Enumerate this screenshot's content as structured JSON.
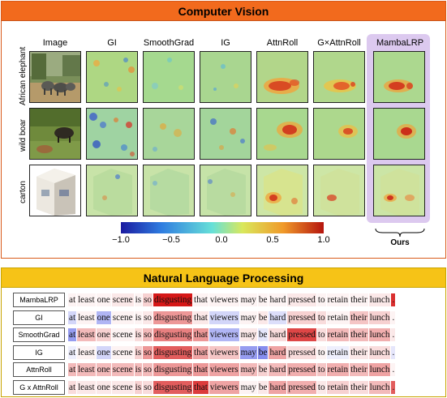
{
  "cv": {
    "title": "Computer Vision",
    "columns": [
      "Image",
      "GI",
      "SmoothGrad",
      "IG",
      "AttnRoll",
      "G×AttnRoll",
      "MambaLRP"
    ],
    "rows": [
      "African elephant",
      "wild boar",
      "carton"
    ],
    "colorbar": {
      "ticks": [
        "−1.0",
        "−0.5",
        "0.0",
        "0.5",
        "1.0"
      ],
      "colors": [
        "#1a1aa0",
        "#2f7de0",
        "#66e0d8",
        "#d9e85c",
        "#f09a2a",
        "#b5140e"
      ]
    },
    "ours_label": "Ours"
  },
  "nlp": {
    "title": "Natural Language Processing",
    "tokens": [
      "at",
      "least",
      "one",
      "scene",
      "is",
      "so",
      "disgusting",
      "that",
      "viewers",
      "may",
      "be",
      "hard",
      "pressed",
      "to",
      "retain",
      "their",
      "lunch",
      "."
    ],
    "rows": [
      {
        "method": "MambaLRP",
        "weights": [
          0.05,
          0.05,
          0.05,
          0.1,
          0.05,
          0.2,
          1.0,
          0.05,
          0.05,
          0.05,
          0.05,
          0.05,
          0.1,
          0.05,
          0.05,
          0.05,
          0.1,
          0.9
        ]
      },
      {
        "method": "GI",
        "weights": [
          -0.25,
          0.05,
          -0.45,
          0.05,
          0.05,
          0.1,
          0.45,
          0.1,
          -0.25,
          0.05,
          0.1,
          -0.2,
          0.2,
          0.15,
          0.05,
          0.25,
          0.2,
          0.05
        ]
      },
      {
        "method": "SmoothGrad",
        "weights": [
          -0.6,
          0.3,
          0.2,
          0.05,
          0.15,
          0.3,
          0.55,
          0.45,
          -0.45,
          0.1,
          -0.15,
          0.15,
          0.8,
          0.15,
          0.3,
          0.3,
          0.35,
          0.1
        ]
      },
      {
        "method": "IG",
        "weights": [
          -0.1,
          0.05,
          -0.25,
          0.05,
          0.2,
          0.45,
          0.7,
          0.4,
          0.25,
          -0.6,
          -0.7,
          0.4,
          0.15,
          0.05,
          -0.1,
          0.1,
          0.15,
          -0.15
        ]
      },
      {
        "method": "AttnRoll",
        "weights": [
          0.3,
          0.3,
          0.3,
          0.3,
          0.3,
          0.3,
          0.45,
          0.45,
          0.4,
          0.3,
          0.2,
          0.3,
          0.35,
          0.25,
          0.35,
          0.3,
          0.4,
          0.05
        ]
      },
      {
        "method": "G x AttnRoll",
        "weights": [
          0.15,
          0.1,
          0.1,
          0.1,
          0.2,
          0.15,
          0.7,
          0.85,
          0.4,
          0.05,
          0.1,
          0.4,
          0.35,
          0.1,
          0.2,
          0.15,
          0.3,
          0.7
        ]
      }
    ]
  }
}
